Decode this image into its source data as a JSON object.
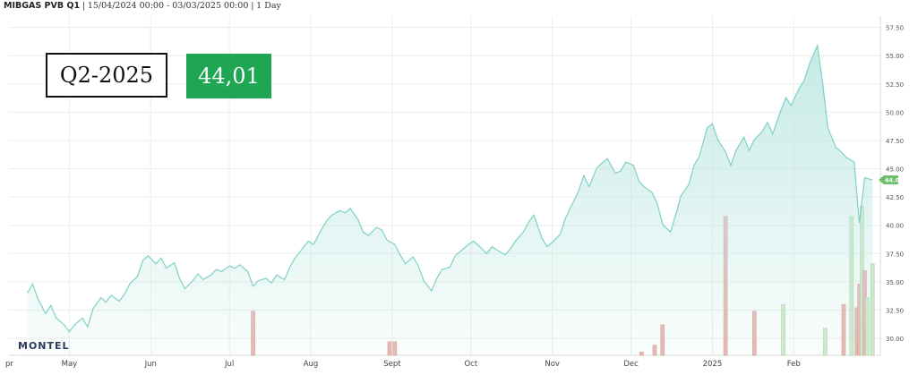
{
  "header": {
    "instrument": "MIBGAS PVB Q1",
    "range": "15/04/2024 00:00 - 03/03/2025 00:00",
    "interval": "1 Day",
    "sep": "|"
  },
  "overlay": {
    "label": "Q2-2025",
    "value": "44,01"
  },
  "brand": "MONTEL",
  "last_price_label": "44.01",
  "colors": {
    "area_line": "#7fd1c4",
    "area_fill_top": "#bfe8e2",
    "last_badge": "#6cc06c",
    "value_box": "#1ea652",
    "volume_red": "#e8b5b0",
    "volume_green": "#cfe8c8",
    "grid": "#ececec"
  },
  "chart_data": {
    "type": "area",
    "title": "",
    "xlabel": "",
    "ylabel": "",
    "ylim": [
      28.5,
      58.5
    ],
    "grid": true,
    "y_ticks": [
      "30.00",
      "32.50",
      "35.00",
      "37.50",
      "40.00",
      "42.50",
      "45.00",
      "47.50",
      "50.00",
      "52.50",
      "55.00",
      "57.50"
    ],
    "x_ticks": [
      "pr",
      "May",
      "Jun",
      "Jul",
      "Aug",
      "Sept",
      "Oct",
      "Nov",
      "Dec",
      "2025",
      "Feb"
    ],
    "x_tick_dates": [
      "2024-04-01",
      "2024-05-01",
      "2024-06-01",
      "2024-07-01",
      "2024-08-01",
      "2024-09-01",
      "2024-10-01",
      "2024-11-01",
      "2024-12-01",
      "2025-01-01",
      "2025-02-01"
    ],
    "series": [
      {
        "type": "area",
        "points": [
          [
            "2024-04-15",
            34.0
          ],
          [
            "2024-04-17",
            34.8
          ],
          [
            "2024-04-19",
            33.5
          ],
          [
            "2024-04-22",
            32.2
          ],
          [
            "2024-04-24",
            32.9
          ],
          [
            "2024-04-26",
            31.8
          ],
          [
            "2024-04-29",
            31.2
          ],
          [
            "2024-05-01",
            30.6
          ],
          [
            "2024-05-03",
            31.2
          ],
          [
            "2024-05-06",
            31.8
          ],
          [
            "2024-05-08",
            31.0
          ],
          [
            "2024-05-10",
            32.6
          ],
          [
            "2024-05-13",
            33.6
          ],
          [
            "2024-05-15",
            33.2
          ],
          [
            "2024-05-17",
            33.8
          ],
          [
            "2024-05-20",
            33.3
          ],
          [
            "2024-05-22",
            33.9
          ],
          [
            "2024-05-24",
            34.8
          ],
          [
            "2024-05-27",
            35.5
          ],
          [
            "2024-05-29",
            36.9
          ],
          [
            "2024-05-31",
            37.3
          ],
          [
            "2024-06-03",
            36.6
          ],
          [
            "2024-06-05",
            37.1
          ],
          [
            "2024-06-07",
            36.2
          ],
          [
            "2024-06-10",
            36.7
          ],
          [
            "2024-06-12",
            35.3
          ],
          [
            "2024-06-14",
            34.4
          ],
          [
            "2024-06-17",
            35.1
          ],
          [
            "2024-06-19",
            35.7
          ],
          [
            "2024-06-21",
            35.2
          ],
          [
            "2024-06-24",
            35.6
          ],
          [
            "2024-06-26",
            36.1
          ],
          [
            "2024-06-28",
            35.9
          ],
          [
            "2024-07-01",
            36.4
          ],
          [
            "2024-07-03",
            36.2
          ],
          [
            "2024-07-05",
            36.5
          ],
          [
            "2024-07-08",
            35.9
          ],
          [
            "2024-07-10",
            34.6
          ],
          [
            "2024-07-12",
            35.1
          ],
          [
            "2024-07-15",
            35.3
          ],
          [
            "2024-07-17",
            34.9
          ],
          [
            "2024-07-19",
            35.6
          ],
          [
            "2024-07-22",
            35.2
          ],
          [
            "2024-07-24",
            36.3
          ],
          [
            "2024-07-26",
            37.1
          ],
          [
            "2024-07-29",
            38.0
          ],
          [
            "2024-07-31",
            38.6
          ],
          [
            "2024-08-02",
            38.3
          ],
          [
            "2024-08-05",
            39.6
          ],
          [
            "2024-08-07",
            40.4
          ],
          [
            "2024-08-09",
            40.9
          ],
          [
            "2024-08-12",
            41.3
          ],
          [
            "2024-08-14",
            41.1
          ],
          [
            "2024-08-16",
            41.5
          ],
          [
            "2024-08-19",
            40.5
          ],
          [
            "2024-08-21",
            39.4
          ],
          [
            "2024-08-23",
            39.1
          ],
          [
            "2024-08-26",
            39.8
          ],
          [
            "2024-08-28",
            39.6
          ],
          [
            "2024-08-30",
            38.7
          ],
          [
            "2024-09-02",
            38.3
          ],
          [
            "2024-09-04",
            37.4
          ],
          [
            "2024-09-06",
            36.6
          ],
          [
            "2024-09-09",
            37.2
          ],
          [
            "2024-09-11",
            36.4
          ],
          [
            "2024-09-13",
            35.1
          ],
          [
            "2024-09-16",
            34.2
          ],
          [
            "2024-09-18",
            35.3
          ],
          [
            "2024-09-20",
            36.1
          ],
          [
            "2024-09-23",
            36.3
          ],
          [
            "2024-09-25",
            37.3
          ],
          [
            "2024-09-27",
            37.7
          ],
          [
            "2024-09-30",
            38.3
          ],
          [
            "2024-10-02",
            38.6
          ],
          [
            "2024-10-04",
            38.2
          ],
          [
            "2024-10-07",
            37.5
          ],
          [
            "2024-10-09",
            38.1
          ],
          [
            "2024-10-11",
            37.8
          ],
          [
            "2024-10-14",
            37.4
          ],
          [
            "2024-10-16",
            37.9
          ],
          [
            "2024-10-18",
            38.6
          ],
          [
            "2024-10-21",
            39.4
          ],
          [
            "2024-10-23",
            40.3
          ],
          [
            "2024-10-25",
            40.9
          ],
          [
            "2024-10-28",
            38.9
          ],
          [
            "2024-10-30",
            38.1
          ],
          [
            "2024-11-01",
            38.5
          ],
          [
            "2024-11-04",
            39.2
          ],
          [
            "2024-11-06",
            40.6
          ],
          [
            "2024-11-08",
            41.6
          ],
          [
            "2024-11-11",
            43.0
          ],
          [
            "2024-11-13",
            44.4
          ],
          [
            "2024-11-15",
            43.4
          ],
          [
            "2024-11-18",
            45.1
          ],
          [
            "2024-11-20",
            45.5
          ],
          [
            "2024-11-22",
            45.9
          ],
          [
            "2024-11-25",
            44.6
          ],
          [
            "2024-11-27",
            44.8
          ],
          [
            "2024-11-29",
            45.6
          ],
          [
            "2024-12-02",
            45.3
          ],
          [
            "2024-12-04",
            43.9
          ],
          [
            "2024-12-06",
            43.4
          ],
          [
            "2024-12-09",
            42.9
          ],
          [
            "2024-12-11",
            41.9
          ],
          [
            "2024-12-13",
            40.1
          ],
          [
            "2024-12-16",
            39.4
          ],
          [
            "2024-12-18",
            40.9
          ],
          [
            "2024-12-20",
            42.6
          ],
          [
            "2024-12-23",
            43.6
          ],
          [
            "2024-12-25",
            45.3
          ],
          [
            "2024-12-27",
            46.1
          ],
          [
            "2024-12-30",
            48.6
          ],
          [
            "2025-01-01",
            49.0
          ],
          [
            "2025-01-03",
            47.6
          ],
          [
            "2025-01-06",
            46.5
          ],
          [
            "2025-01-08",
            45.3
          ],
          [
            "2025-01-10",
            46.6
          ],
          [
            "2025-01-13",
            47.8
          ],
          [
            "2025-01-15",
            46.6
          ],
          [
            "2025-01-17",
            47.6
          ],
          [
            "2025-01-20",
            48.3
          ],
          [
            "2025-01-22",
            49.1
          ],
          [
            "2025-01-24",
            48.1
          ],
          [
            "2025-01-27",
            50.1
          ],
          [
            "2025-01-29",
            51.3
          ],
          [
            "2025-01-31",
            50.6
          ],
          [
            "2025-02-03",
            52.1
          ],
          [
            "2025-02-05",
            52.8
          ],
          [
            "2025-02-07",
            54.3
          ],
          [
            "2025-02-10",
            55.9
          ],
          [
            "2025-02-12",
            52.6
          ],
          [
            "2025-02-14",
            48.6
          ],
          [
            "2025-02-17",
            46.9
          ],
          [
            "2025-02-19",
            46.5
          ],
          [
            "2025-02-21",
            46.0
          ],
          [
            "2025-02-24",
            45.6
          ],
          [
            "2025-02-26",
            40.2
          ],
          [
            "2025-02-28",
            44.2
          ],
          [
            "2025-03-03",
            44.01
          ]
        ]
      }
    ],
    "volume_bars": [
      {
        "date": "2024-07-10",
        "color": "red",
        "height": 0.13
      },
      {
        "date": "2024-08-31",
        "color": "red",
        "height": 0.04
      },
      {
        "date": "2024-09-02",
        "color": "red",
        "height": 0.04
      },
      {
        "date": "2024-12-05",
        "color": "red",
        "height": 0.01
      },
      {
        "date": "2024-12-10",
        "color": "red",
        "height": 0.03
      },
      {
        "date": "2024-12-13",
        "color": "red",
        "height": 0.09
      },
      {
        "date": "2025-01-06",
        "color": "red",
        "height": 0.41
      },
      {
        "date": "2025-01-17",
        "color": "red",
        "height": 0.13
      },
      {
        "date": "2025-01-28",
        "color": "green",
        "height": 0.15
      },
      {
        "date": "2025-02-13",
        "color": "green",
        "height": 0.08
      },
      {
        "date": "2025-02-20",
        "color": "red",
        "height": 0.15
      },
      {
        "date": "2025-02-23",
        "color": "green",
        "height": 0.41
      },
      {
        "date": "2025-02-25",
        "color": "red",
        "height": 0.14
      },
      {
        "date": "2025-02-26",
        "color": "red",
        "height": 0.21
      },
      {
        "date": "2025-02-27",
        "color": "green",
        "height": 0.44
      },
      {
        "date": "2025-02-28",
        "color": "red",
        "height": 0.25
      },
      {
        "date": "2025-03-01",
        "color": "green",
        "height": 0.17
      },
      {
        "date": "2025-03-03",
        "color": "green",
        "height": 0.27
      }
    ]
  }
}
